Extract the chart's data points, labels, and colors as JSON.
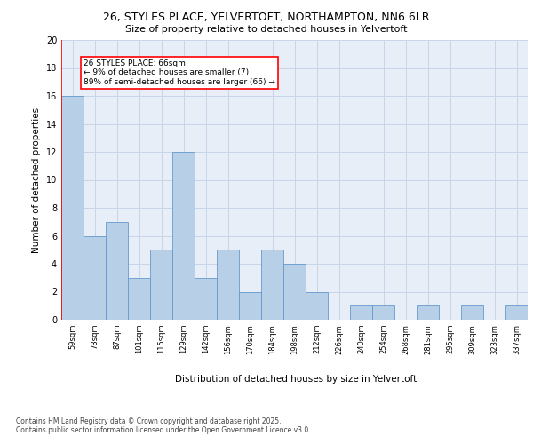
{
  "title_line1": "26, STYLES PLACE, YELVERTOFT, NORTHAMPTON, NN6 6LR",
  "title_line2": "Size of property relative to detached houses in Yelvertoft",
  "xlabel": "Distribution of detached houses by size in Yelvertoft",
  "ylabel": "Number of detached properties",
  "categories": [
    "59sqm",
    "73sqm",
    "87sqm",
    "101sqm",
    "115sqm",
    "129sqm",
    "142sqm",
    "156sqm",
    "170sqm",
    "184sqm",
    "198sqm",
    "212sqm",
    "226sqm",
    "240sqm",
    "254sqm",
    "268sqm",
    "281sqm",
    "295sqm",
    "309sqm",
    "323sqm",
    "337sqm"
  ],
  "values": [
    16,
    6,
    7,
    3,
    5,
    12,
    3,
    5,
    2,
    5,
    4,
    2,
    0,
    1,
    1,
    0,
    1,
    0,
    1,
    0,
    1
  ],
  "bar_color": "#b8cfe8",
  "bar_edge_color": "#6699cc",
  "annotation_line1": "26 STYLES PLACE: 66sqm",
  "annotation_line2": "← 9% of detached houses are smaller (7)",
  "annotation_line3": "89% of semi-detached houses are larger (66) →",
  "annotation_box_edge_color": "red",
  "vline_color": "red",
  "ylim": [
    0,
    20
  ],
  "yticks": [
    0,
    2,
    4,
    6,
    8,
    10,
    12,
    14,
    16,
    18,
    20
  ],
  "grid_color": "#c8d4e8",
  "bg_color": "#e8eef8",
  "footer_line1": "Contains HM Land Registry data © Crown copyright and database right 2025.",
  "footer_line2": "Contains public sector information licensed under the Open Government Licence v3.0."
}
